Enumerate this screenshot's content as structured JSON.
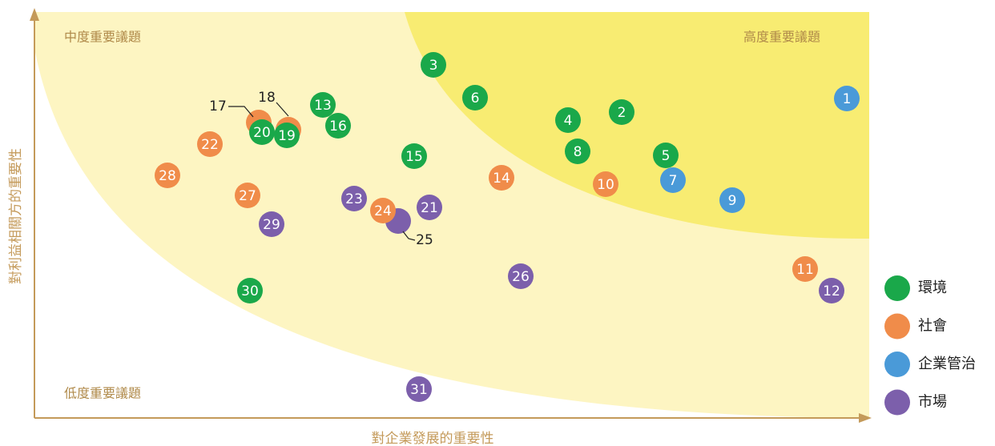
{
  "quadrants": {
    "medium": "中度重要議題",
    "high": "高度重要議題",
    "low": "低度重要議題"
  },
  "axes": {
    "x": "對企業發展的重要性",
    "y": "對利益相關方的重要性"
  },
  "legend": [
    {
      "name": "環境",
      "color": "#1aa84a"
    },
    {
      "name": "社會",
      "color": "#f08c4a"
    },
    {
      "name": "企業管治",
      "color": "#4a9ad8"
    },
    {
      "name": "市場",
      "color": "#7c5fab"
    }
  ],
  "nodes": [
    {
      "label": "1",
      "group": "企業管治"
    },
    {
      "label": "2",
      "group": "環境"
    },
    {
      "label": "3",
      "group": "環境"
    },
    {
      "label": "4",
      "group": "環境"
    },
    {
      "label": "5",
      "group": "環境"
    },
    {
      "label": "6",
      "group": "環境"
    },
    {
      "label": "7",
      "group": "企業管治"
    },
    {
      "label": "8",
      "group": "環境"
    },
    {
      "label": "9",
      "group": "企業管治"
    },
    {
      "label": "10",
      "group": "社會"
    },
    {
      "label": "11",
      "group": "社會"
    },
    {
      "label": "12",
      "group": "市場"
    },
    {
      "label": "13",
      "group": "環境"
    },
    {
      "label": "14",
      "group": "社會"
    },
    {
      "label": "15",
      "group": "環境"
    },
    {
      "label": "16",
      "group": "環境"
    },
    {
      "label": "17",
      "group": "社會"
    },
    {
      "label": "18",
      "group": "社會"
    },
    {
      "label": "19",
      "group": "環境"
    },
    {
      "label": "20",
      "group": "環境"
    },
    {
      "label": "21",
      "group": "市場"
    },
    {
      "label": "22",
      "group": "社會"
    },
    {
      "label": "23",
      "group": "市場"
    },
    {
      "label": "24",
      "group": "社會"
    },
    {
      "label": "25",
      "group": "市場"
    },
    {
      "label": "26",
      "group": "市場"
    },
    {
      "label": "27",
      "group": "社會"
    },
    {
      "label": "28",
      "group": "社會"
    },
    {
      "label": "29",
      "group": "市場"
    },
    {
      "label": "30",
      "group": "環境"
    },
    {
      "label": "31",
      "group": "市場"
    }
  ]
}
